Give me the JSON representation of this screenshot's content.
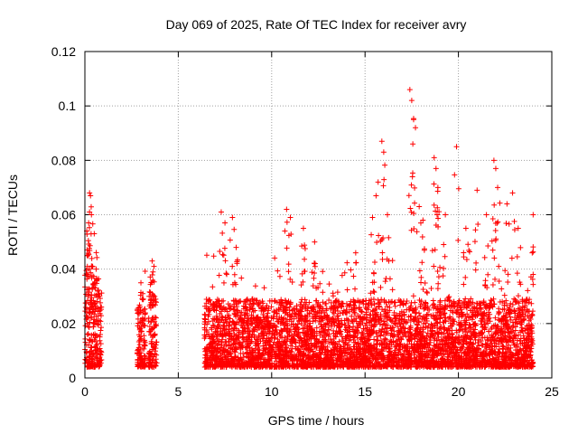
{
  "chart_data": {
    "type": "scatter",
    "title": "Day 069 of 2025, Rate Of TEC Index for receiver avry",
    "xlabel": "GPS time / hours",
    "ylabel": "ROTI / TECUs",
    "xlim": [
      0,
      25
    ],
    "ylim": [
      0,
      0.12
    ],
    "x_ticks": [
      0,
      5,
      10,
      15,
      20,
      25
    ],
    "x_tick_labels": [
      "0",
      "5",
      "10",
      "15",
      "20",
      "25"
    ],
    "y_ticks": [
      0,
      0.02,
      0.04,
      0.06,
      0.08,
      0.1,
      0.12
    ],
    "y_tick_labels": [
      "0",
      "0.02",
      "0.04",
      "0.06",
      "0.08",
      "0.1",
      "0.12"
    ],
    "grid": true,
    "legend": "none",
    "marker": "+",
    "color": "#ff0000",
    "segments": [
      {
        "x_range": [
          0.0,
          0.9
        ],
        "typical_max": 0.035,
        "peaks": [
          [
            0.1,
            0.054
          ],
          [
            0.2,
            0.057
          ],
          [
            0.25,
            0.068
          ],
          [
            0.3,
            0.067
          ],
          [
            0.35,
            0.06
          ],
          [
            0.5,
            0.053
          ],
          [
            0.6,
            0.04
          ]
        ]
      },
      {
        "x_range": [
          2.8,
          3.25
        ],
        "typical_max": 0.024,
        "peaks": [
          [
            3.0,
            0.035
          ],
          [
            3.1,
            0.031
          ]
        ]
      },
      {
        "x_range": [
          3.4,
          3.85
        ],
        "typical_max": 0.028,
        "peaks": [
          [
            3.6,
            0.043
          ],
          [
            3.7,
            0.041
          ]
        ]
      },
      {
        "x_range": [
          6.4,
          24.0
        ],
        "typical_max": 0.025,
        "peaks": [
          [
            7.3,
            0.061
          ],
          [
            7.5,
            0.057
          ],
          [
            7.9,
            0.059
          ],
          [
            8.1,
            0.048
          ],
          [
            10.8,
            0.062
          ],
          [
            11.0,
            0.059
          ],
          [
            11.7,
            0.055
          ],
          [
            12.3,
            0.05
          ],
          [
            14.5,
            0.046
          ],
          [
            15.4,
            0.059
          ],
          [
            15.7,
            0.072
          ],
          [
            15.9,
            0.087
          ],
          [
            16.0,
            0.083
          ],
          [
            16.2,
            0.06
          ],
          [
            17.4,
            0.106
          ],
          [
            17.5,
            0.102
          ],
          [
            17.6,
            0.095
          ],
          [
            17.7,
            0.092
          ],
          [
            17.9,
            0.063
          ],
          [
            18.1,
            0.058
          ],
          [
            18.7,
            0.081
          ],
          [
            18.8,
            0.077
          ],
          [
            18.9,
            0.07
          ],
          [
            19.3,
            0.06
          ],
          [
            19.9,
            0.085
          ],
          [
            20.4,
            0.055
          ],
          [
            21.0,
            0.069
          ],
          [
            21.5,
            0.06
          ],
          [
            21.9,
            0.08
          ],
          [
            22.0,
            0.077
          ],
          [
            22.1,
            0.07
          ],
          [
            22.6,
            0.064
          ],
          [
            22.9,
            0.068
          ],
          [
            23.2,
            0.055
          ],
          [
            24.0,
            0.06
          ]
        ]
      }
    ]
  }
}
